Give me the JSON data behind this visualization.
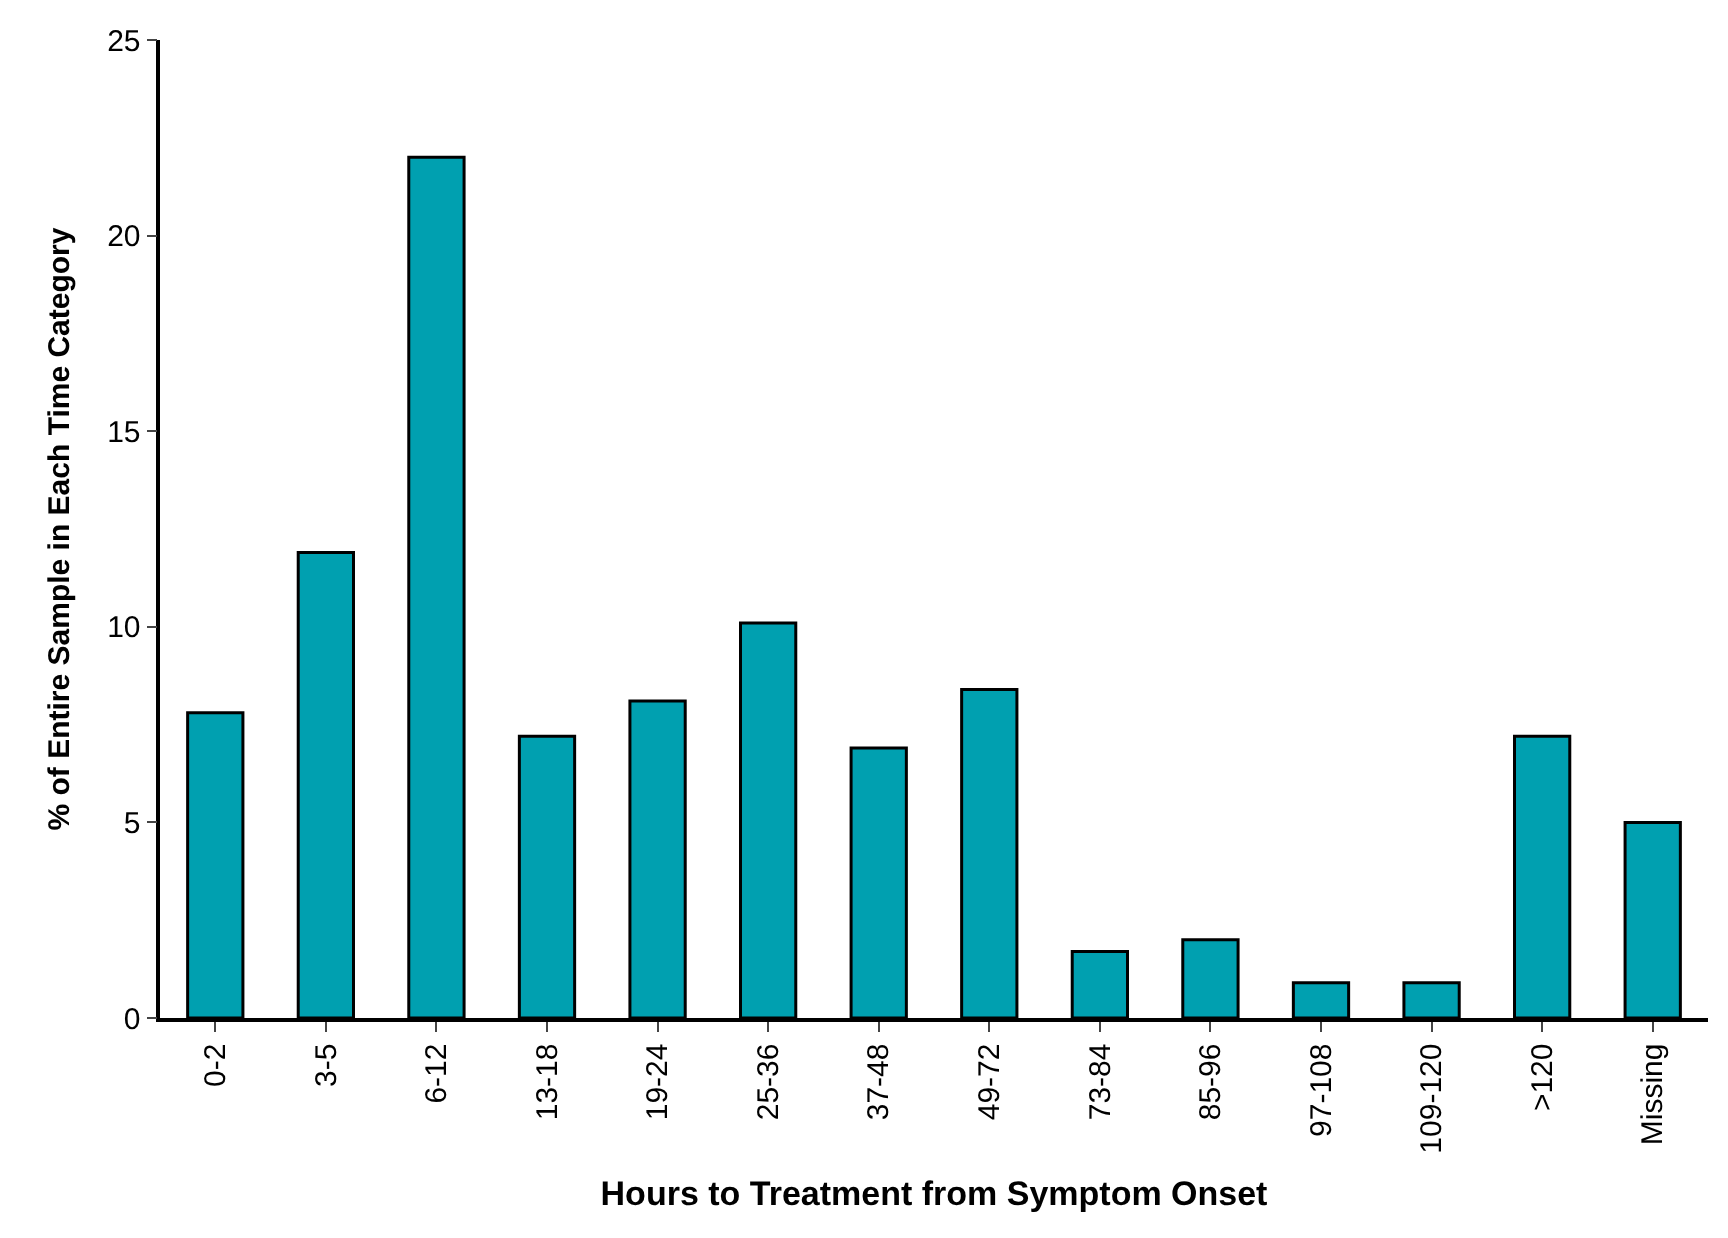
{
  "chart_data": {
    "type": "bar",
    "xlabel": "Hours to Treatment from Symptom Onset",
    "ylabel": "% of Entire Sample in Each Time Category",
    "categories": [
      "0-2",
      "3-5",
      "6-12",
      "13-18",
      "19-24",
      "25-36",
      "37-48",
      "49-72",
      "73-84",
      "85-96",
      "97-108",
      "109-120",
      ">120",
      "Missing"
    ],
    "values": [
      7.8,
      11.9,
      22.0,
      7.2,
      8.1,
      10.1,
      6.9,
      8.4,
      1.7,
      2.0,
      0.9,
      0.9,
      7.2,
      5.0
    ],
    "color": "#00a0b0",
    "ylim": [
      0,
      25
    ],
    "yticks": [
      0,
      5,
      10,
      15,
      20,
      25
    ]
  }
}
